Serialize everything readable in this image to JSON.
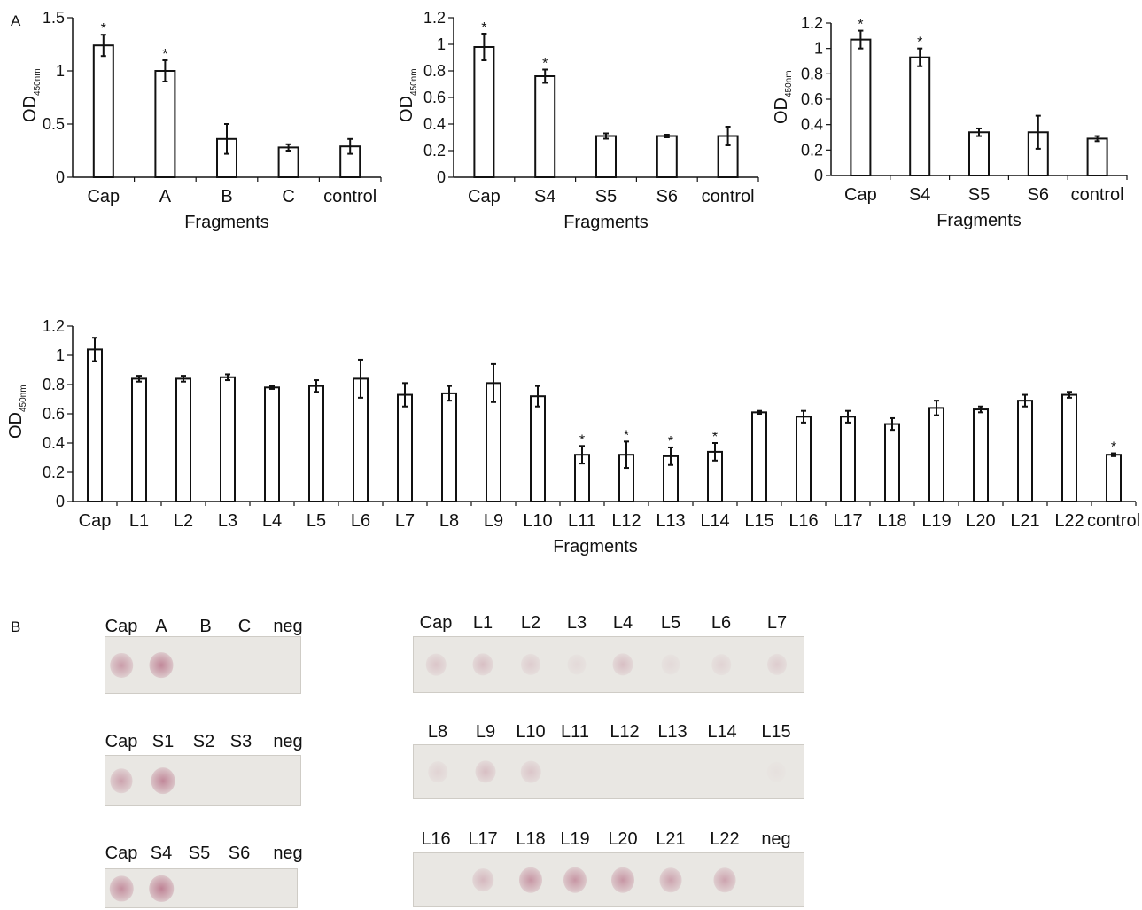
{
  "panel_labels": {
    "a": "A",
    "b": "B"
  },
  "common": {
    "ylabel_main": "OD",
    "ylabel_sub": "450nm",
    "xlabel": "Fragments",
    "star": "*"
  },
  "chart_data": [
    {
      "type": "bar",
      "categories": [
        "Cap",
        "A",
        "B",
        "C",
        "control"
      ],
      "values": [
        1.24,
        1.0,
        0.36,
        0.28,
        0.29
      ],
      "errors": [
        0.1,
        0.1,
        0.14,
        0.03,
        0.07
      ],
      "significant": [
        true,
        true,
        false,
        false,
        false
      ],
      "ylim": [
        0,
        1.5
      ],
      "yticks": [
        "0",
        "0.5",
        "1",
        "1.5"
      ],
      "ytick_values": [
        0,
        0.5,
        1,
        1.5
      ],
      "xlabel": "Fragments",
      "ylabel": "OD450nm"
    },
    {
      "type": "bar",
      "categories": [
        "Cap",
        "S4",
        "S5",
        "S6",
        "control"
      ],
      "values": [
        0.98,
        0.76,
        0.31,
        0.31,
        0.31
      ],
      "errors": [
        0.1,
        0.05,
        0.02,
        0.01,
        0.07
      ],
      "significant": [
        true,
        true,
        false,
        false,
        false
      ],
      "ylim": [
        0,
        1.2
      ],
      "yticks": [
        "0",
        "0.2",
        "0.4",
        "0.6",
        "0.8",
        "1",
        "1.2"
      ],
      "ytick_values": [
        0,
        0.2,
        0.4,
        0.6,
        0.8,
        1,
        1.2
      ],
      "xlabel": "Fragments",
      "ylabel": "OD450nm"
    },
    {
      "type": "bar",
      "categories": [
        "Cap",
        "S4",
        "S5",
        "S6",
        "control"
      ],
      "values": [
        1.07,
        0.93,
        0.34,
        0.34,
        0.29
      ],
      "errors": [
        0.07,
        0.07,
        0.03,
        0.13,
        0.02
      ],
      "significant": [
        true,
        true,
        false,
        false,
        false
      ],
      "ylim": [
        0,
        1.2
      ],
      "yticks": [
        "0",
        "0.2",
        "0.4",
        "0.6",
        "0.8",
        "1",
        "1.2"
      ],
      "ytick_values": [
        0,
        0.2,
        0.4,
        0.6,
        0.8,
        1,
        1.2
      ],
      "xlabel": "Fragments",
      "ylabel": "OD450nm"
    },
    {
      "type": "bar",
      "categories": [
        "Cap",
        "L1",
        "L2",
        "L3",
        "L4",
        "L5",
        "L6",
        "L7",
        "L8",
        "L9",
        "L10",
        "L11",
        "L12",
        "L13",
        "L14",
        "L15",
        "L16",
        "L17",
        "L18",
        "L19",
        "L20",
        "L21",
        "L22",
        "control"
      ],
      "values": [
        1.04,
        0.84,
        0.84,
        0.85,
        0.78,
        0.79,
        0.84,
        0.73,
        0.74,
        0.81,
        0.72,
        0.32,
        0.32,
        0.31,
        0.34,
        0.61,
        0.58,
        0.58,
        0.53,
        0.64,
        0.63,
        0.69,
        0.73,
        0.32
      ],
      "errors": [
        0.08,
        0.02,
        0.02,
        0.02,
        0.01,
        0.04,
        0.13,
        0.08,
        0.05,
        0.13,
        0.07,
        0.06,
        0.09,
        0.06,
        0.06,
        0.01,
        0.04,
        0.04,
        0.04,
        0.05,
        0.02,
        0.04,
        0.02,
        0.01
      ],
      "significant": [
        false,
        false,
        false,
        false,
        false,
        false,
        false,
        false,
        false,
        false,
        false,
        true,
        true,
        true,
        true,
        false,
        false,
        false,
        false,
        false,
        false,
        false,
        false,
        true
      ],
      "ylim": [
        0,
        1.2
      ],
      "yticks": [
        "0",
        "0.2",
        "0.4",
        "0.6",
        "0.8",
        "1",
        "1.2"
      ],
      "ytick_values": [
        0,
        0.2,
        0.4,
        0.6,
        0.8,
        1,
        1.2
      ],
      "xlabel": "Fragments",
      "ylabel": "OD450nm"
    }
  ],
  "blots": [
    {
      "labels": [
        "Cap",
        "A",
        "B",
        "C",
        "neg"
      ],
      "intensity": [
        0.55,
        0.7,
        0.0,
        0.0,
        0.0
      ]
    },
    {
      "labels": [
        "Cap",
        "S1",
        "S2",
        "S3",
        "neg"
      ],
      "intensity": [
        0.5,
        0.7,
        0.0,
        0.0,
        0.0
      ]
    },
    {
      "labels": [
        "Cap",
        "S4",
        "S5",
        "S6",
        "neg"
      ],
      "intensity": [
        0.65,
        0.75,
        0.0,
        0.0,
        0.0
      ]
    },
    {
      "labels": [
        "Cap",
        "L1",
        "L2",
        "L3",
        "L4",
        "L5",
        "L6",
        "L7"
      ],
      "intensity": [
        0.25,
        0.3,
        0.2,
        0.1,
        0.3,
        0.1,
        0.15,
        0.2
      ]
    },
    {
      "labels": [
        "L8",
        "L9",
        "L10",
        "L11",
        "L12",
        "L13",
        "L14",
        "L15"
      ],
      "intensity": [
        0.15,
        0.3,
        0.25,
        0.0,
        0.0,
        0.0,
        0.0,
        0.05
      ]
    },
    {
      "labels": [
        "L16",
        "L17",
        "L18",
        "L19",
        "L20",
        "L21",
        "L22",
        "neg"
      ],
      "intensity": [
        0.0,
        0.35,
        0.6,
        0.6,
        0.6,
        0.5,
        0.5,
        0.0
      ]
    }
  ],
  "colors": {
    "bar_fill": "#ffffff",
    "bar_stroke": "#111111",
    "blot_bg": "#e9e7e3",
    "dot": "#b0607a"
  }
}
